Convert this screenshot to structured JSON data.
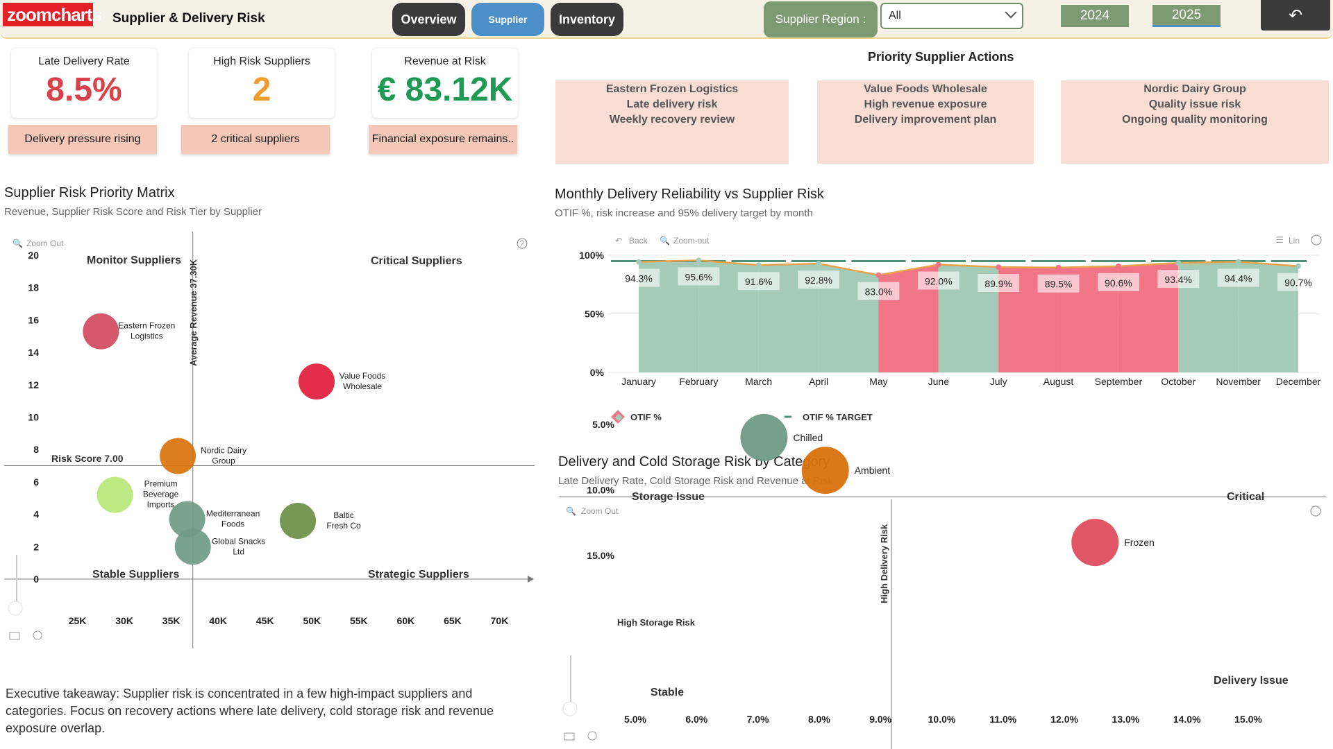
{
  "header": {
    "logo": "zoomcharts",
    "title": "Supplier & Delivery Risk",
    "nav": {
      "overview": "Overview",
      "supplier": "Supplier",
      "inventory": "Inventory"
    },
    "region_label": "Supplier Region :",
    "region_value": "All",
    "years": [
      "2024",
      "2025"
    ],
    "back_icon": "↶"
  },
  "kpis": [
    {
      "label": "Late Delivery Rate",
      "value": "8.5%",
      "color": "#d9424a",
      "note": "Delivery pressure rising"
    },
    {
      "label": "High Risk Suppliers",
      "value": "2",
      "color": "#ef9d2e",
      "note": "2 critical suppliers"
    },
    {
      "label": "Revenue at Risk",
      "value": "€ 83.12K",
      "color": "#1e9a55",
      "note": "Financial exposure remains.."
    }
  ],
  "priority_actions": {
    "title": "Priority Supplier Actions",
    "cards": [
      [
        "Eastern Frozen Logistics",
        "Late delivery risk",
        "Weekly recovery review"
      ],
      [
        "Value Foods Wholesale",
        "High revenue exposure",
        "Delivery improvement plan"
      ],
      [
        "Nordic Dairy Group",
        "Quality issue risk",
        "Ongoing quality monitoring"
      ]
    ]
  },
  "matrix": {
    "title": "Supplier Risk Priority Matrix",
    "subtitle": "Revenue, Supplier Risk Score and Risk Tier by Supplier",
    "zoom_out": "Zoom Out",
    "quadrants": {
      "tl": "Monitor Suppliers",
      "tr": "Critical Suppliers",
      "bl": "Stable Suppliers",
      "br": "Strategic Suppliers"
    },
    "risk_line_label": "Risk Score 7.00",
    "avg_rev_label": "Average Revenue 37.30K",
    "help_icon": "?"
  },
  "reliability": {
    "title": "Monthly Delivery Reliability vs Supplier Risk",
    "subtitle": "OTIF %, risk increase and 95% delivery target by month",
    "back": "Back",
    "zoom_out": "Zoom-out",
    "lin": "Lin",
    "legend": [
      "OTIF %",
      "OTIF % TARGET"
    ]
  },
  "cold": {
    "title": "Delivery and Cold Storage Risk by Category",
    "subtitle": "Late Delivery Rate, Cold Storage Risk and Revenue at Risk",
    "zoom_out": "Zoom Out",
    "quadrants": {
      "tl": "Storage Issue",
      "tr": "Critical",
      "bl": "Stable",
      "br": "Delivery Issue"
    },
    "h_line_label": "High Storage Risk",
    "v_line_label": "High Delivery Risk"
  },
  "takeaway": "Executive takeaway: Supplier risk is concentrated in a few high-impact suppliers and categories. Focus on recovery actions where late delivery, cold storage risk and revenue exposure overlap.",
  "chart_data": [
    {
      "type": "scatter",
      "title": "Supplier Risk Priority Matrix",
      "x_ticks": [
        "25K",
        "30K",
        "35K",
        "40K",
        "45K",
        "50K",
        "55K",
        "60K",
        "65K",
        "70K"
      ],
      "y_ticks": [
        0,
        2,
        4,
        6,
        8,
        10,
        12,
        14,
        16,
        18,
        20
      ],
      "xlim": [
        20000,
        73000
      ],
      "ylim": [
        0,
        20
      ],
      "ref_x": 37300,
      "ref_y": 7,
      "points": [
        {
          "name": "Eastern Frozen Logistics",
          "label": [
            "Eastern Frozen",
            "Logistics"
          ],
          "x": 27500,
          "y": 15.3,
          "size": 26,
          "color": "#d04a5c"
        },
        {
          "name": "Value Foods Wholesale",
          "label": [
            "Value Foods",
            "Wholesale"
          ],
          "x": 50500,
          "y": 12.2,
          "size": 26,
          "color": "#e21b3b"
        },
        {
          "name": "Nordic Dairy Group",
          "label": [
            "Nordic Dairy",
            "Group"
          ],
          "x": 35700,
          "y": 7.6,
          "size": 26,
          "color": "#d9720d"
        },
        {
          "name": "Premium Beverage Imports",
          "label": [
            "Premium",
            "Beverage",
            "Imports"
          ],
          "x": 29000,
          "y": 5.2,
          "size": 26,
          "color": "#b6e779"
        },
        {
          "name": "Mediterranean Foods",
          "label": [
            "Mediterranean",
            "Foods"
          ],
          "x": 36700,
          "y": 3.7,
          "size": 26,
          "color": "#6f9a88"
        },
        {
          "name": "Global Snacks Ltd",
          "label": [
            "Global Snacks",
            "Ltd"
          ],
          "x": 37300,
          "y": 2.0,
          "size": 26,
          "color": "#6f9a88"
        },
        {
          "name": "Baltic Fresh Co",
          "label": [
            "Baltic",
            "Fresh Co"
          ],
          "x": 48500,
          "y": 3.6,
          "size": 26,
          "color": "#6a8f44"
        }
      ]
    },
    {
      "type": "area",
      "title": "Monthly Delivery Reliability vs Supplier Risk",
      "categories": [
        "January",
        "February",
        "March",
        "April",
        "May",
        "June",
        "July",
        "August",
        "September",
        "October",
        "November",
        "December"
      ],
      "y_ticks": [
        "0%",
        "50%",
        "100%"
      ],
      "ylim": [
        0,
        100
      ],
      "series": [
        {
          "name": "OTIF %",
          "values": [
            94.3,
            95.6,
            91.6,
            92.8,
            83.0,
            92.0,
            89.9,
            89.5,
            90.6,
            93.4,
            94.4,
            90.7
          ],
          "labels": [
            "94.3%",
            "95.6%",
            "91.6%",
            "92.8%",
            "83.0%",
            "92.0%",
            "89.9%",
            "89.5%",
            "90.6%",
            "93.4%",
            "94.4%",
            "90.7%"
          ]
        },
        {
          "name": "OTIF % TARGET",
          "values": [
            95,
            95,
            95,
            95,
            95,
            95,
            95,
            95,
            95,
            95,
            95,
            95
          ]
        }
      ],
      "colors": {
        "ok": "#a3cbb8",
        "risk": "#ef7587",
        "target": "#4f8f75",
        "line": "#e8a24a"
      },
      "risk_ranges": [
        [
          4,
          5
        ],
        [
          6,
          9
        ]
      ]
    },
    {
      "type": "scatter",
      "title": "Delivery and Cold Storage Risk by Category",
      "x_ticks": [
        "5.0%",
        "6.0%",
        "7.0%",
        "8.0%",
        "9.0%",
        "10.0%",
        "11.0%",
        "12.0%",
        "13.0%",
        "14.0%",
        "15.0%"
      ],
      "y_ticks": [
        "5.0%",
        "10.0%",
        "15.0%"
      ],
      "xlim": [
        4.3,
        16.3
      ],
      "ylim": [
        2.5,
        18.5
      ],
      "ref_x": 9.3,
      "ref_y": 10.0,
      "points": [
        {
          "name": "Frozen",
          "x": 12.5,
          "y": 14.0,
          "size": 34,
          "color": "#df4d5f"
        },
        {
          "name": "Ambient",
          "x": 8.1,
          "y": 8.5,
          "size": 34,
          "color": "#d9720d"
        },
        {
          "name": "Chilled",
          "x": 7.1,
          "y": 6.0,
          "size": 34,
          "color": "#6f9a88"
        }
      ]
    }
  ]
}
